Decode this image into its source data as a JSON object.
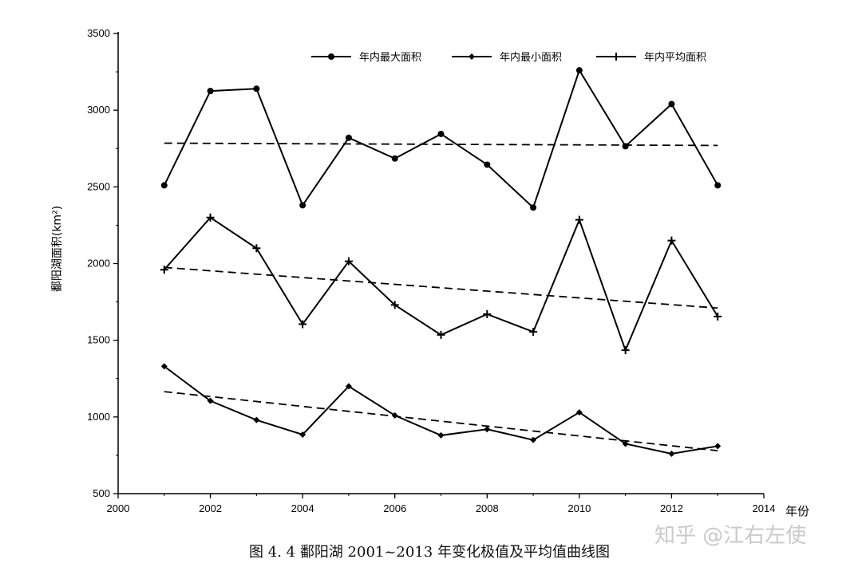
{
  "chart_data": {
    "type": "line",
    "xlim": [
      2000,
      2014
    ],
    "ylim": [
      500,
      3500
    ],
    "xticks": [
      2000,
      2002,
      2004,
      2006,
      2008,
      2010,
      2012,
      2014
    ],
    "yticks": [
      500,
      1000,
      1500,
      2000,
      2500,
      3000,
      3500
    ],
    "ylabel": "鄱阳湖面积(km²)",
    "xunit": "年份",
    "legend_position": "top-right",
    "grid": false,
    "x": [
      2001,
      2002,
      2003,
      2004,
      2005,
      2006,
      2007,
      2008,
      2009,
      2010,
      2011,
      2012,
      2013
    ],
    "series": [
      {
        "name": "年内最大面积",
        "marker": "circle",
        "values": [
          2510,
          3125,
          3140,
          2380,
          2820,
          2685,
          2845,
          2645,
          2365,
          3260,
          2765,
          3040,
          2510
        ],
        "trend": [
          2785,
          2770
        ]
      },
      {
        "name": "年内最小面积",
        "marker": "diamond",
        "values": [
          1330,
          1105,
          980,
          885,
          1200,
          1010,
          880,
          920,
          850,
          1030,
          825,
          760,
          810
        ],
        "trend": [
          1165,
          780
        ]
      },
      {
        "name": "年内平均面积",
        "marker": "plus",
        "values": [
          1960,
          2300,
          2100,
          1605,
          2015,
          1730,
          1535,
          1670,
          1555,
          2285,
          1435,
          2150,
          1655
        ],
        "trend": [
          1975,
          1710
        ]
      }
    ]
  },
  "caption": "图  4. 4 鄱阳湖 2001~2013 年变化极值及平均值曲线图",
  "watermark": "知乎 @江右左使",
  "colors": {
    "line": "#000000",
    "background": "#ffffff"
  }
}
